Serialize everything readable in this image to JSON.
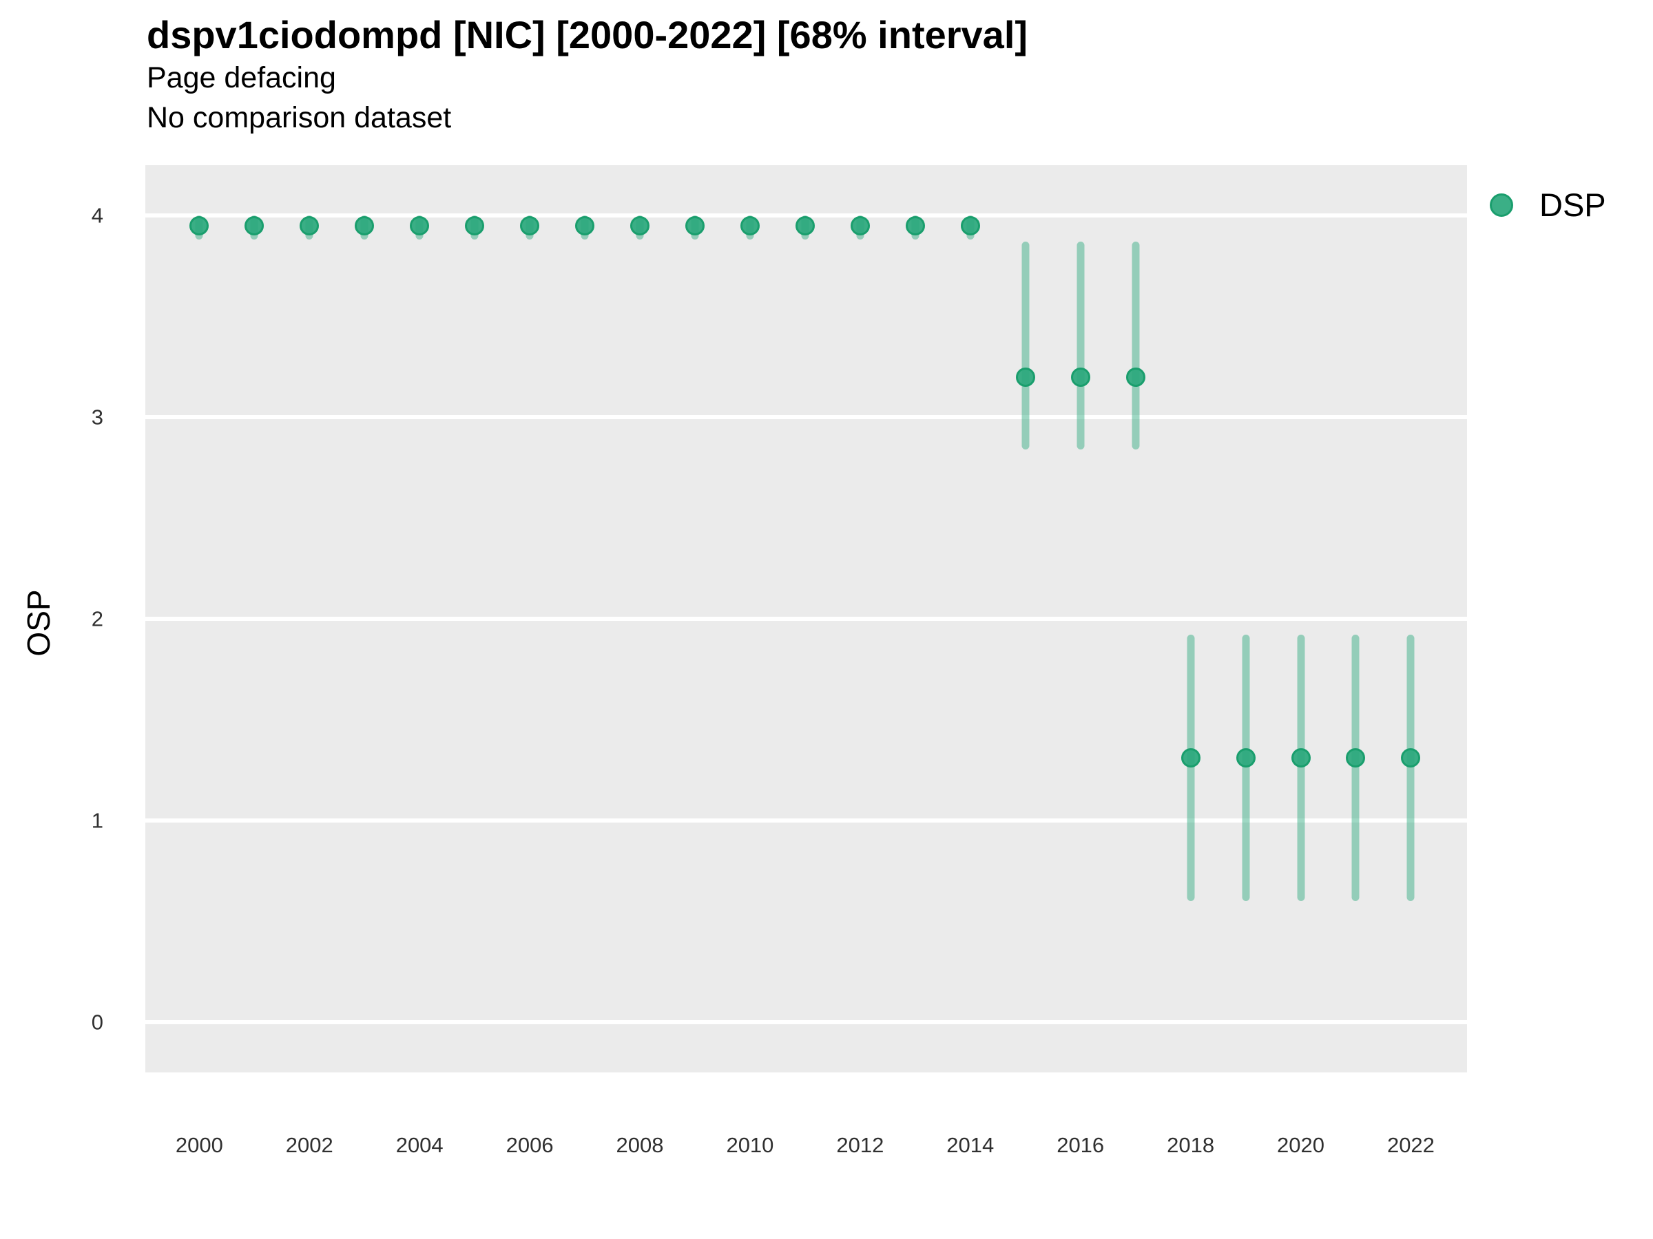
{
  "title": "dspv1ciodompd [NIC] [2000-2022] [68% interval]",
  "subtitle": "Page defacing",
  "note": "No comparison dataset",
  "ylabel": "OSP",
  "legend": {
    "label": "DSP"
  },
  "colors": {
    "background": "#ffffff",
    "panel_background": "#ebebeb",
    "gridline": "#ffffff",
    "point_fill": "rgba(42,168,124,0.92)",
    "point_stroke": "#1a9e6d",
    "interval_bar": "rgba(42,168,124,0.45)",
    "tick_text": "#303030"
  },
  "chart_data": {
    "type": "scatter",
    "title": "dspv1ciodompd [NIC] [2000-2022] [68% interval]",
    "subtitle": "Page defacing",
    "note": "No comparison dataset",
    "xlabel": "",
    "ylabel": "OSP",
    "interval": "68%",
    "grid": "horizontal-major-only",
    "legend_position": "right-top",
    "xlim": [
      1999.02,
      2023.02
    ],
    "ylim": [
      -0.25,
      4.25
    ],
    "x_ticks": [
      2000,
      2002,
      2004,
      2006,
      2008,
      2010,
      2012,
      2014,
      2016,
      2018,
      2020,
      2022
    ],
    "y_ticks": [
      0,
      1,
      2,
      3,
      4
    ],
    "series": [
      {
        "name": "DSP",
        "color": "#2aa87c",
        "points": [
          {
            "x": 2000,
            "y": 3.95,
            "lo": 3.88,
            "hi": 4.0
          },
          {
            "x": 2001,
            "y": 3.95,
            "lo": 3.88,
            "hi": 4.0
          },
          {
            "x": 2002,
            "y": 3.95,
            "lo": 3.88,
            "hi": 4.0
          },
          {
            "x": 2003,
            "y": 3.95,
            "lo": 3.88,
            "hi": 4.0
          },
          {
            "x": 2004,
            "y": 3.95,
            "lo": 3.88,
            "hi": 4.0
          },
          {
            "x": 2005,
            "y": 3.95,
            "lo": 3.88,
            "hi": 4.0
          },
          {
            "x": 2006,
            "y": 3.95,
            "lo": 3.88,
            "hi": 4.0
          },
          {
            "x": 2007,
            "y": 3.95,
            "lo": 3.88,
            "hi": 4.0
          },
          {
            "x": 2008,
            "y": 3.95,
            "lo": 3.88,
            "hi": 4.0
          },
          {
            "x": 2009,
            "y": 3.95,
            "lo": 3.88,
            "hi": 4.0
          },
          {
            "x": 2010,
            "y": 3.95,
            "lo": 3.88,
            "hi": 4.0
          },
          {
            "x": 2011,
            "y": 3.95,
            "lo": 3.88,
            "hi": 4.0
          },
          {
            "x": 2012,
            "y": 3.95,
            "lo": 3.88,
            "hi": 4.0
          },
          {
            "x": 2013,
            "y": 3.95,
            "lo": 3.88,
            "hi": 4.0
          },
          {
            "x": 2014,
            "y": 3.95,
            "lo": 3.88,
            "hi": 4.0
          },
          {
            "x": 2015,
            "y": 3.2,
            "lo": 2.84,
            "hi": 3.87
          },
          {
            "x": 2016,
            "y": 3.2,
            "lo": 2.84,
            "hi": 3.87
          },
          {
            "x": 2017,
            "y": 3.2,
            "lo": 2.84,
            "hi": 3.87
          },
          {
            "x": 2018,
            "y": 1.31,
            "lo": 0.6,
            "hi": 1.92
          },
          {
            "x": 2019,
            "y": 1.31,
            "lo": 0.6,
            "hi": 1.92
          },
          {
            "x": 2020,
            "y": 1.31,
            "lo": 0.6,
            "hi": 1.92
          },
          {
            "x": 2021,
            "y": 1.31,
            "lo": 0.6,
            "hi": 1.92
          },
          {
            "x": 2022,
            "y": 1.31,
            "lo": 0.6,
            "hi": 1.92
          }
        ]
      }
    ]
  }
}
